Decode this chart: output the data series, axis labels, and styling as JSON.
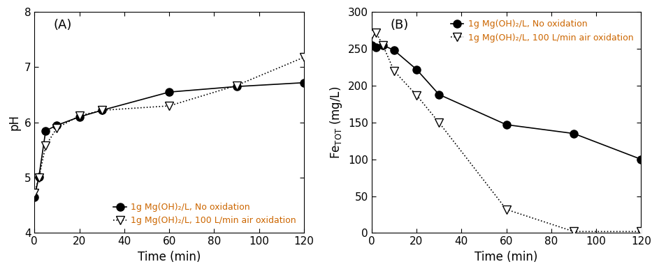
{
  "panel_A": {
    "label": "(A)",
    "xlabel": "Time (min)",
    "ylabel": "pH",
    "ylim": [
      4,
      8
    ],
    "xlim": [
      0,
      120
    ],
    "yticks": [
      4,
      5,
      6,
      7,
      8
    ],
    "xticks": [
      0,
      20,
      40,
      60,
      80,
      100,
      120
    ],
    "series1": {
      "label": "1g Mg(OH)₂/L, No oxidation",
      "x": [
        0,
        2,
        5,
        10,
        20,
        30,
        60,
        90,
        120
      ],
      "y": [
        4.65,
        5.02,
        5.85,
        5.95,
        6.1,
        6.22,
        6.55,
        6.65,
        6.72
      ],
      "marker": "o",
      "linestyle": "-",
      "color": "black",
      "markersize": 8,
      "markerfacecolor": "black"
    },
    "series2": {
      "label": "1g Mg(OH)₂/L, 100 L/min air oxidation",
      "x": [
        0,
        2,
        5,
        10,
        20,
        30,
        60,
        90,
        120
      ],
      "y": [
        4.72,
        5.0,
        5.58,
        5.9,
        6.12,
        6.22,
        6.3,
        6.67,
        7.18
      ],
      "marker": "v",
      "linestyle": ":",
      "color": "black",
      "markersize": 8,
      "markerfacecolor": "white"
    },
    "legend_loc": "lower right"
  },
  "panel_B": {
    "label": "(B)",
    "xlabel": "Time (min)",
    "ylabel": "Fe$_\\mathregular{TOT}$ (mg/L)",
    "ylim": [
      0,
      300
    ],
    "xlim": [
      0,
      120
    ],
    "yticks": [
      0,
      50,
      100,
      150,
      200,
      250,
      300
    ],
    "xticks": [
      0,
      20,
      40,
      60,
      80,
      100,
      120
    ],
    "series1": {
      "label": "1g Mg(OH)₂/L, No oxidation",
      "x": [
        0,
        2,
        5,
        10,
        20,
        30,
        60,
        90,
        120
      ],
      "y": [
        255,
        252,
        255,
        248,
        222,
        188,
        147,
        135,
        100
      ],
      "marker": "o",
      "linestyle": "-",
      "color": "black",
      "markersize": 8,
      "markerfacecolor": "black"
    },
    "series2": {
      "label": "1g Mg(OH)₂/L, 100 L/min air oxidation",
      "x": [
        0,
        2,
        5,
        10,
        20,
        30,
        60,
        90,
        120
      ],
      "y": [
        270,
        272,
        255,
        220,
        187,
        150,
        32,
        2,
        2
      ],
      "marker": "v",
      "linestyle": ":",
      "color": "black",
      "markersize": 8,
      "markerfacecolor": "white"
    },
    "legend_loc": "upper right"
  },
  "legend_text_color": "#CC6600",
  "legend_fontsize": 9,
  "axis_label_fontsize": 12,
  "tick_fontsize": 11,
  "panel_label_fontsize": 13,
  "linewidth": 1.2
}
